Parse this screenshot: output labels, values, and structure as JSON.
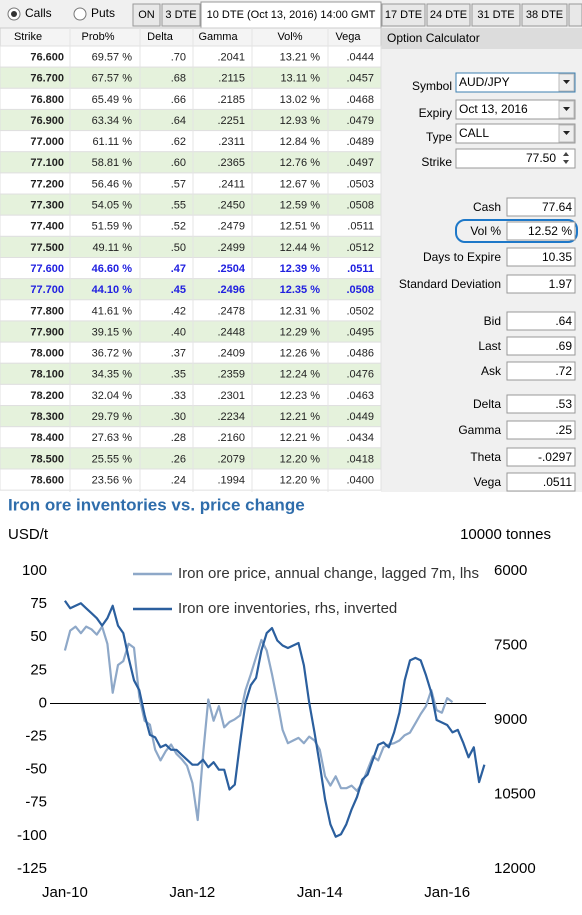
{
  "toolbar": {
    "radios": [
      "Calls",
      "Puts"
    ],
    "tabs": [
      "ON",
      "3 DTE",
      "10 DTE (Oct 13, 2016) 14:00 GMT",
      "17 DTE",
      "24 DTE",
      "31 DTE",
      "38 DTE"
    ]
  },
  "table": {
    "headers": [
      "Strike",
      "Prob%",
      "Delta",
      "Gamma",
      "Vol%",
      "Vega"
    ],
    "highlighted_rows": [
      10,
      11
    ],
    "rows": [
      [
        "76.600",
        "69.57 %",
        ".70",
        ".2041",
        "13.21 %",
        ".0444"
      ],
      [
        "76.700",
        "67.57 %",
        ".68",
        ".2115",
        "13.11 %",
        ".0457"
      ],
      [
        "76.800",
        "65.49 %",
        ".66",
        ".2185",
        "13.02 %",
        ".0468"
      ],
      [
        "76.900",
        "63.34 %",
        ".64",
        ".2251",
        "12.93 %",
        ".0479"
      ],
      [
        "77.000",
        "61.11 %",
        ".62",
        ".2311",
        "12.84 %",
        ".0489"
      ],
      [
        "77.100",
        "58.81 %",
        ".60",
        ".2365",
        "12.76 %",
        ".0497"
      ],
      [
        "77.200",
        "56.46 %",
        ".57",
        ".2411",
        "12.67 %",
        ".0503"
      ],
      [
        "77.300",
        "54.05 %",
        ".55",
        ".2450",
        "12.59 %",
        ".0508"
      ],
      [
        "77.400",
        "51.59 %",
        ".52",
        ".2479",
        "12.51 %",
        ".0511"
      ],
      [
        "77.500",
        "49.11 %",
        ".50",
        ".2499",
        "12.44 %",
        ".0512"
      ],
      [
        "77.600",
        "46.60 %",
        ".47",
        ".2504",
        "12.39 %",
        ".0511"
      ],
      [
        "77.700",
        "44.10 %",
        ".45",
        ".2496",
        "12.35 %",
        ".0508"
      ],
      [
        "77.800",
        "41.61 %",
        ".42",
        ".2478",
        "12.31 %",
        ".0502"
      ],
      [
        "77.900",
        "39.15 %",
        ".40",
        ".2448",
        "12.29 %",
        ".0495"
      ],
      [
        "78.000",
        "36.72 %",
        ".37",
        ".2409",
        "12.26 %",
        ".0486"
      ],
      [
        "78.100",
        "34.35 %",
        ".35",
        ".2359",
        "12.24 %",
        ".0476"
      ],
      [
        "78.200",
        "32.04 %",
        ".33",
        ".2301",
        "12.23 %",
        ".0463"
      ],
      [
        "78.300",
        "29.79 %",
        ".30",
        ".2234",
        "12.21 %",
        ".0449"
      ],
      [
        "78.400",
        "27.63 %",
        ".28",
        ".2160",
        "12.21 %",
        ".0434"
      ],
      [
        "78.500",
        "25.55 %",
        ".26",
        ".2079",
        "12.20 %",
        ".0418"
      ],
      [
        "78.600",
        "23.56 %",
        ".24",
        ".1994",
        "12.20 %",
        ".0400"
      ]
    ]
  },
  "calculator": {
    "title": "Option Calculator",
    "inputs": [
      {
        "label": "Symbol",
        "value": "AUD/JPY"
      },
      {
        "label": "Expiry",
        "value": "Oct 13, 2016"
      },
      {
        "label": "Type",
        "value": "CALL"
      },
      {
        "label": "Strike",
        "value": "77.50"
      }
    ],
    "outputs": [
      {
        "label": "Cash",
        "value": "77.64"
      },
      {
        "label": "Vol %",
        "value": "12.52 %"
      },
      {
        "label": "Days to Expire",
        "value": "10.35"
      },
      {
        "label": "Standard Deviation",
        "value": "1.97"
      },
      {
        "label": "Bid",
        "value": ".64"
      },
      {
        "label": "Last",
        "value": ".69"
      },
      {
        "label": "Ask",
        "value": ".72"
      },
      {
        "label": "Delta",
        "value": ".53"
      },
      {
        "label": "Gamma",
        "value": ".25"
      },
      {
        "label": "Theta",
        "value": "-.0297"
      },
      {
        "label": "Vega",
        "value": ".0511"
      }
    ]
  },
  "chart_data": {
    "type": "line",
    "title": "Iron ore inventories vs. price change",
    "y_label": "USD/t",
    "y2_label": "10000 tonnes",
    "legend": "top",
    "x": [
      "2010-01",
      "2010-02",
      "2010-03",
      "2010-04",
      "2010-05",
      "2010-06",
      "2010-07",
      "2010-08",
      "2010-09",
      "2010-10",
      "2010-11",
      "2010-12",
      "2011-01",
      "2011-02",
      "2011-03",
      "2011-04",
      "2011-05",
      "2011-06",
      "2011-07",
      "2011-08",
      "2011-09",
      "2011-10",
      "2011-11",
      "2011-12",
      "2012-01",
      "2012-02",
      "2012-03",
      "2012-04",
      "2012-05",
      "2012-06",
      "2012-07",
      "2012-08",
      "2012-09",
      "2012-10",
      "2012-11",
      "2012-12",
      "2013-01",
      "2013-02",
      "2013-03",
      "2013-04",
      "2013-05",
      "2013-06",
      "2013-07",
      "2013-08",
      "2013-09",
      "2013-10",
      "2013-11",
      "2013-12",
      "2014-01",
      "2014-02",
      "2014-03",
      "2014-04",
      "2014-05",
      "2014-06",
      "2014-07",
      "2014-08",
      "2014-09",
      "2014-10",
      "2014-11",
      "2014-12",
      "2015-01",
      "2015-02",
      "2015-03",
      "2015-04",
      "2015-05",
      "2015-06",
      "2015-07",
      "2015-08",
      "2015-09",
      "2015-10",
      "2015-11",
      "2015-12",
      "2016-01",
      "2016-02",
      "2016-03",
      "2016-04",
      "2016-05",
      "2016-06",
      "2016-07",
      "2016-08"
    ],
    "series": [
      {
        "name": "Iron ore price, annual change, lagged 7m, lhs",
        "color": "#8ea8c8",
        "axis": "y",
        "values": [
          40,
          55,
          58,
          53,
          58,
          56,
          52,
          58,
          45,
          8,
          29,
          32,
          45,
          42,
          5,
          -13,
          -16,
          -35,
          -43,
          -36,
          -31,
          -38,
          -42,
          -47,
          -60,
          -88,
          -39,
          3,
          -13,
          -2,
          -18,
          -14,
          -12,
          -9,
          10,
          22,
          35,
          48,
          40,
          22,
          2,
          -20,
          -30,
          -28,
          -26,
          -30,
          -25,
          -28,
          -35,
          -55,
          -62,
          -55,
          -64,
          -64,
          -62,
          -66,
          -60,
          -50,
          -40,
          -43,
          -33,
          -31,
          -30,
          -28,
          -24,
          -22,
          -15,
          -8,
          -2,
          10,
          -5,
          -7,
          4,
          1,
          null,
          null,
          null,
          null,
          null,
          null
        ]
      },
      {
        "name": "Iron ore inventories, rhs, inverted",
        "color": "#2b5f9e",
        "axis": "y2",
        "values": [
          6600,
          6750,
          6700,
          6650,
          6750,
          6850,
          6950,
          7100,
          6950,
          6700,
          7100,
          7250,
          7750,
          8200,
          8400,
          8900,
          9300,
          9350,
          9550,
          9500,
          9600,
          9600,
          9700,
          9800,
          9900,
          9900,
          9800,
          9950,
          9850,
          10000,
          10000,
          10400,
          10300,
          9450,
          8650,
          8300,
          8150,
          7600,
          7250,
          7150,
          7400,
          7500,
          7550,
          7500,
          7450,
          7900,
          8650,
          9250,
          9900,
          10600,
          11100,
          11350,
          11300,
          11100,
          10800,
          10550,
          10200,
          10100,
          9800,
          9500,
          9450,
          9550,
          9250,
          8850,
          8200,
          7800,
          7750,
          7800,
          8100,
          8450,
          9000,
          9050,
          9100,
          9250,
          9200,
          9450,
          9750,
          9550,
          10250,
          9900
        ]
      }
    ],
    "xlim": [
      "2009-10",
      "2016-10"
    ],
    "xticks": [
      {
        "value": "2010-01",
        "label": "Jan-10"
      },
      {
        "value": "2012-01",
        "label": "Jan-12"
      },
      {
        "value": "2014-01",
        "label": "Jan-14"
      },
      {
        "value": "2016-01",
        "label": "Jan-16"
      }
    ],
    "ylim": [
      -125,
      100
    ],
    "yticks": [
      100,
      75,
      50,
      25,
      0,
      -25,
      -50,
      -75,
      -100,
      -125
    ],
    "y2lim": [
      12000,
      6000
    ],
    "y2ticks": [
      6000,
      7500,
      9000,
      10500,
      12000
    ]
  }
}
